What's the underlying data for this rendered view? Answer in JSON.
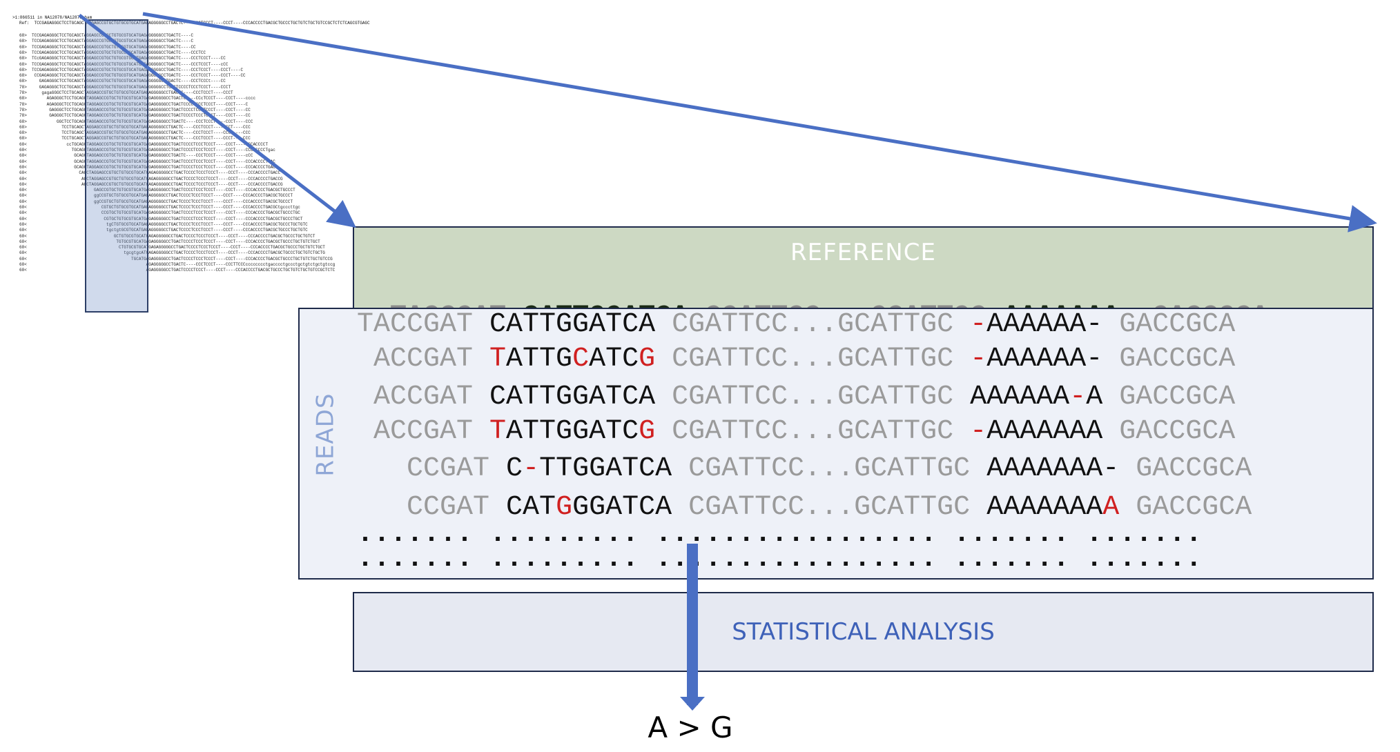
{
  "mini": {
    "header": ">1:866511 in NA12878/NA12878.bam",
    "ref": "Ref:  TCCGAGAGGGCTCCTGCAGCTAGGAGCCGTGCTGTGCGTGCATGAGAGGGGGCCTGACTC----CCCTCCCT----CCCT----CCCACCCCTGACGCTGCCCTGCTGTCTGCTGTCCGCTCTCTCAGCGTGAGC",
    "rows": [
      "68>  TCCGAGAGGGCTCCTGCAGCTAGGAGCCGTGCTGTGCGTGCATGAGAGGGGGCCTGACTC----C",
      "68>  TCCGAGAGGGCTCCTGCAGCTAGGAGCCGTGCTGTGCGTGCATGAGAGGGGGCCTGACTC----C",
      "68>  TCCGAGAGGGCTCCTGCAGCTAGGAGCCGTGCTGTGCGTGCATGAGAGGGGGCCTGACTC----CC",
      "68>  TCCGAGAGGGCTCCTGCAGCTAGGAGCCGTGCTGTGCGTGCATGAGAGGGGGCCTGACTC----CCCTCC",
      "68>  TCcGAGAGGGCTCCTGCAGCTAGGAGCCGTGCTGTGCGTGCATGAGAGGGGGCCTGACTC----CCCTCCCT----CC",
      "68>  TCCGAGAGGGCTCCTGCAGCTAGGAGCCGTGCTGTGCGTGCATGAGAGGGGGCCTGACTC----CCCTCCCT----cCC",
      "68>  TCCGAGAGGGCTCCTGCAGCTAGGAGCCGTGCTGTGCGTGCATGAGAGGGGGCCTGACTC----CCCTCCCT----CCCT----C",
      "68>   CCGAGAGGGCTCCTGCAGCTAGGAGCCGTGCTGTGCGTGCATGAGAGGGGGCCTGACTC----CCCTCCCT----CCCT----CC",
      "68>     GAGAGGGCTCCTGCAGCTAGGAGCCGTGCTGTGCGTGCATGAGAGGGGGCCTGACTC----CCCTCCCt----CC",
      "78>     GAGAGGGCTCCTGCAGCTAGGAGCCGTGCTGTGCGTGCATGAGAGGGGGCCTGACTCCCCTCCCTCCCT----CCCT",
      "78>      gagaGGGCTCCTGCAGCTAGGAGCCGTGCTGTGCGTGCATGAGAGGGGGCCTGACTC----CCCTCCCT----CCCT",
      "68>        AGAGGGCTCCTGCAGCTAGGAGCCGTGCTGTGCGTGCATGAGAGGGGGCCTGACTC----CCcTCCCT----CCCT----cccc",
      "78>        AGAGGGCTCCTGCAGCTAGGAGCCGTGCTGTGCGTGCATGAGAGGGGGCCTGACTCCCCTCCCTCCCT----CCCT----C",
      "78>         GAGGGCTCCTGCAGCTAGGAGCCGTGCTGTGCGTGCATGAGAGGGGGCCTGACTCCCCTCCCTCCCT----CCCT----CC",
      "78>         GAGGGCTCCTGCAGCTAGGAGCCGTGCTGTGCGTGCATGAGAGGGGGCCTGACTCCCCTCCCTCCCT----CCCT----CC",
      "68>            GGCTCCTGCAGCTAGGAGCCGTGCTGTGCGTGCATGAGAGGGGGCCTGACTC----CCCTCCCT----CCCT----CCC",
      "68>              TCCTGCAGCTAGGAGCCGTGCTGTGCGTGCATGAGAGGGGGCCTGACTC----CCCTCCCT----CCCT----CCC",
      "68>              TCCTGCAGCTAGGAGCCGTGCTGTGCGTGCATGAGAGGGGGCCTGACTC----CCCTCCCT----CCCT----CCC",
      "68>              TCCTGCAGCTAGGAGCCGTGCTGTGCGTGCATGAGAGGGGGCCTGACTC----CCCTCCCT----CCCT----CCC",
      "68<                ccTGCAGCTAGGAGCCGTGCTGTGCGTGCATGAGAGGGGGCCTGACTCCCCTCCCTCCCT----CCCT----CCCACCCCT",
      "68<                  TGCAGCTAGGAGCCGTGCTGTGCGTGCATGAGAGGGGGCCTGACTCCCCTCCCTCCCT----CCCT----CCCACCCCTgac",
      "68<                   GCAGCTAGGAGCCGTGCTGTGCGTGCATGAGAGGGGGCCTGACTC----CCCTCCCT----CCCT----cCC",
      "68<                   GCAGCTAGGAGCCGTGCTGTGCGTGCATGAGAGGGGGCCTGACTCCCCTCCCTCCCT----CCCT----CCCACCCCTGAC",
      "68<                   GCAGCTAGGAGCCGTGCTGTGCGTGCATGAGAGGGGGCCTGACTCCCCTCCCTCCCT----CCCT----CCCACCCCTGAC",
      "68<                     CAGCTAGGAGCCGTGCTGTGCGTGCATGAGAGGGGGCCTGACTCCCCTCCCTCCCT----CCCT----CCCACCCCTGACC",
      "68<                      AGCTAGGAGCCGTGCTGTGCGTGCATGAGAGGGGGCCTGACTCCCCTCCCTCCCT----CCCT----CCCACCCCTGACCG",
      "68<                      AGCTAGGAGCCGTGCTGTGCGTGCATGAGAGGGGGCCTGACTCCCCTCCCTCCCT----CCCT----CCCACCCCTGACCG",
      "68<                           GAGCCGTGCTGTGCGTGCATGAGAGGGGGCCTGACTCCCCTCCCTCCCT----CCCT----CCCACCCCTGACGCTGCCCT",
      "68<                           ggCCGTGCTGTGCGTGCATGAGAGGGGGCCTGACTCCCCTCCCTCCCT----CCCT----CCCACCCCTGACGCTGCCCT",
      "68<                           ggCCGTGCTGTGCGTGCATGAGAGGGGGCCTGACTCCCCTCCCTCCCT----CCCT----CCCACCCCTGACGCTGCCCT",
      "68<                              CGTGCTGTGCGTGCATGAGAGGGGGCCTGACTCCCCTCCCTCCCT----CCCT----CCCACCCCTGACGCtgcccttgc",
      "68<                              CCGTGCTGTGCGTGCATGAGAGGGGGCCTGACTCCCCTCCCTCCCT----CCCT----CCCACCCCTGACGCTGCCCTGC",
      "68<                               CGTGCTGTGCGTGCATGAGAGGGGGCCTGACTCCCCTCCCTCCCT----CCCT----CCCACCCCTGACGCTGCCCTGCT",
      "68<                                tgCTGTGCGTGCATGAGAGGGGGCCTGACTCCCCTCCCTCCCT----CCCT----CCCACCCCTGACGCTGCCCTGCTGTC",
      "68<                                tgctgtGCGTGCATGAGAGGGGGCCTGACTCCCCTCCCTCCCT----CCCT----CCCACCCCTGACGCTGCCCTGCTGTC",
      "68<                                   GCTGTGCGTGCATGAGAGGGGGCCTGACTCCCCTCCCTCCCT----CCCT----CCCACCCCTGACGCTGCCCTGCTGTCT",
      "68<                                    TGTGCGTGCATGAGAGGGGGCCTGACTCCCCTCCCTCCCT----CCCT----CCCACCCCTGACGCTGCCCTGCTGTCTGCT",
      "68<                                     CTGTGCGTGCATGAGAGGGGGCCTGACTCCCCTCCCTCCCT----CCCT----CCCACCCCTGACGCTGCCCTGCTGTCTGCT",
      "68<                                       tgcgtgcATGAGAGGGGGCCTGACTCCCCTCCCTCCCT----CCCT----CCCACCCCTGACGCTGCCCTGCTGTCTGCTG",
      "68<                                          TGCATGAGAGGGGGCCTGACTCCCCTCCCTCCCT----CCCT----CCCACCCCTGACGCTGCCCTGCTGTCTGCTGTCCG",
      "68<                                                AGAGGGGGCCTGACTC----CCCTCCCT----CCCTTCCCcccccccctgacccctgccctgctgtctgctgtccg",
      "68<                                                AGAGGGGGCCTGACTCCCCTCCCT----CCCT----CCCACCCCTGACGCTGCCCTGCTGTCTGCTGTCCGCTCTC"
    ]
  },
  "reference": {
    "label": "REFERENCE",
    "seq": {
      "s1": "TACCGAT",
      "s2": "CATTGGATCA",
      "s3": "CGATTCC...GCATTGC",
      "s4": "AAAAAAA-",
      "s5": "GACCGCA"
    }
  },
  "reads": {
    "label": "READS",
    "rows": [
      [
        {
          "t": "TACCGAT ",
          "c": "grey"
        },
        {
          "t": "CATTGGATCA",
          "c": "blk"
        },
        {
          "t": " CGATTCC...GCATTGC ",
          "c": "grey"
        },
        {
          "t": "-",
          "c": "red"
        },
        {
          "t": "AAAAAA-",
          "c": "blk"
        },
        {
          "t": " GACCGCA",
          "c": "grey"
        }
      ],
      [
        {
          "t": " ACCGAT ",
          "c": "grey"
        },
        {
          "t": "T",
          "c": "red"
        },
        {
          "t": "ATTG",
          "c": "blk"
        },
        {
          "t": "C",
          "c": "red"
        },
        {
          "t": "ATC",
          "c": "blk"
        },
        {
          "t": "G",
          "c": "red"
        },
        {
          "t": " CGATTCC...GCATTGC ",
          "c": "grey"
        },
        {
          "t": "-",
          "c": "red"
        },
        {
          "t": "AAAAAA-",
          "c": "blk"
        },
        {
          "t": " GACCGCA",
          "c": "grey"
        }
      ],
      [
        {
          "t": " ACCGAT ",
          "c": "grey"
        },
        {
          "t": "CATTGGATCA",
          "c": "blk"
        },
        {
          "t": " CGATTCC...GCATTGC ",
          "c": "grey"
        },
        {
          "t": "AAAAAA",
          "c": "blk"
        },
        {
          "t": "-",
          "c": "red"
        },
        {
          "t": "A",
          "c": "blk"
        },
        {
          "t": " GACCGCA",
          "c": "grey"
        }
      ],
      [
        {
          "t": " ACCGAT ",
          "c": "grey"
        },
        {
          "t": "T",
          "c": "red"
        },
        {
          "t": "ATTGGATC",
          "c": "blk"
        },
        {
          "t": "G",
          "c": "red"
        },
        {
          "t": " CGATTCC...GCATTGC ",
          "c": "grey"
        },
        {
          "t": "-",
          "c": "red"
        },
        {
          "t": "AAAAAAA",
          "c": "blk"
        },
        {
          "t": " GACCGCA",
          "c": "grey"
        }
      ],
      [
        {
          "t": "   CCGAT ",
          "c": "grey"
        },
        {
          "t": "C",
          "c": "blk"
        },
        {
          "t": "-",
          "c": "red"
        },
        {
          "t": "TTGGATCA",
          "c": "blk"
        },
        {
          "t": " CGATTCC...GCATTGC ",
          "c": "grey"
        },
        {
          "t": "AAAAAAA-",
          "c": "blk"
        },
        {
          "t": " GACCGCA",
          "c": "grey"
        }
      ],
      [
        {
          "t": "   CCGAT ",
          "c": "grey"
        },
        {
          "t": "CAT",
          "c": "blk"
        },
        {
          "t": "G",
          "c": "red"
        },
        {
          "t": "GGATCA",
          "c": "blk"
        },
        {
          "t": " CGATTCC...GCATTGC ",
          "c": "grey"
        },
        {
          "t": "AAAAAAA",
          "c": "blk"
        },
        {
          "t": "A",
          "c": "red"
        },
        {
          "t": " GACCGCA",
          "c": "grey"
        }
      ]
    ],
    "dots": "....... ......... ................. ....... ......."
  },
  "analysis": {
    "label": "STATISTICAL ANALYSIS"
  },
  "result": "A > G",
  "colors": {
    "arrow": "#4a6fc4",
    "reference_fill": "#cdd9c3",
    "reads_fill": "#eef1f8",
    "analysis_fill": "#e6e9f2",
    "mismatch": "#d02020"
  }
}
